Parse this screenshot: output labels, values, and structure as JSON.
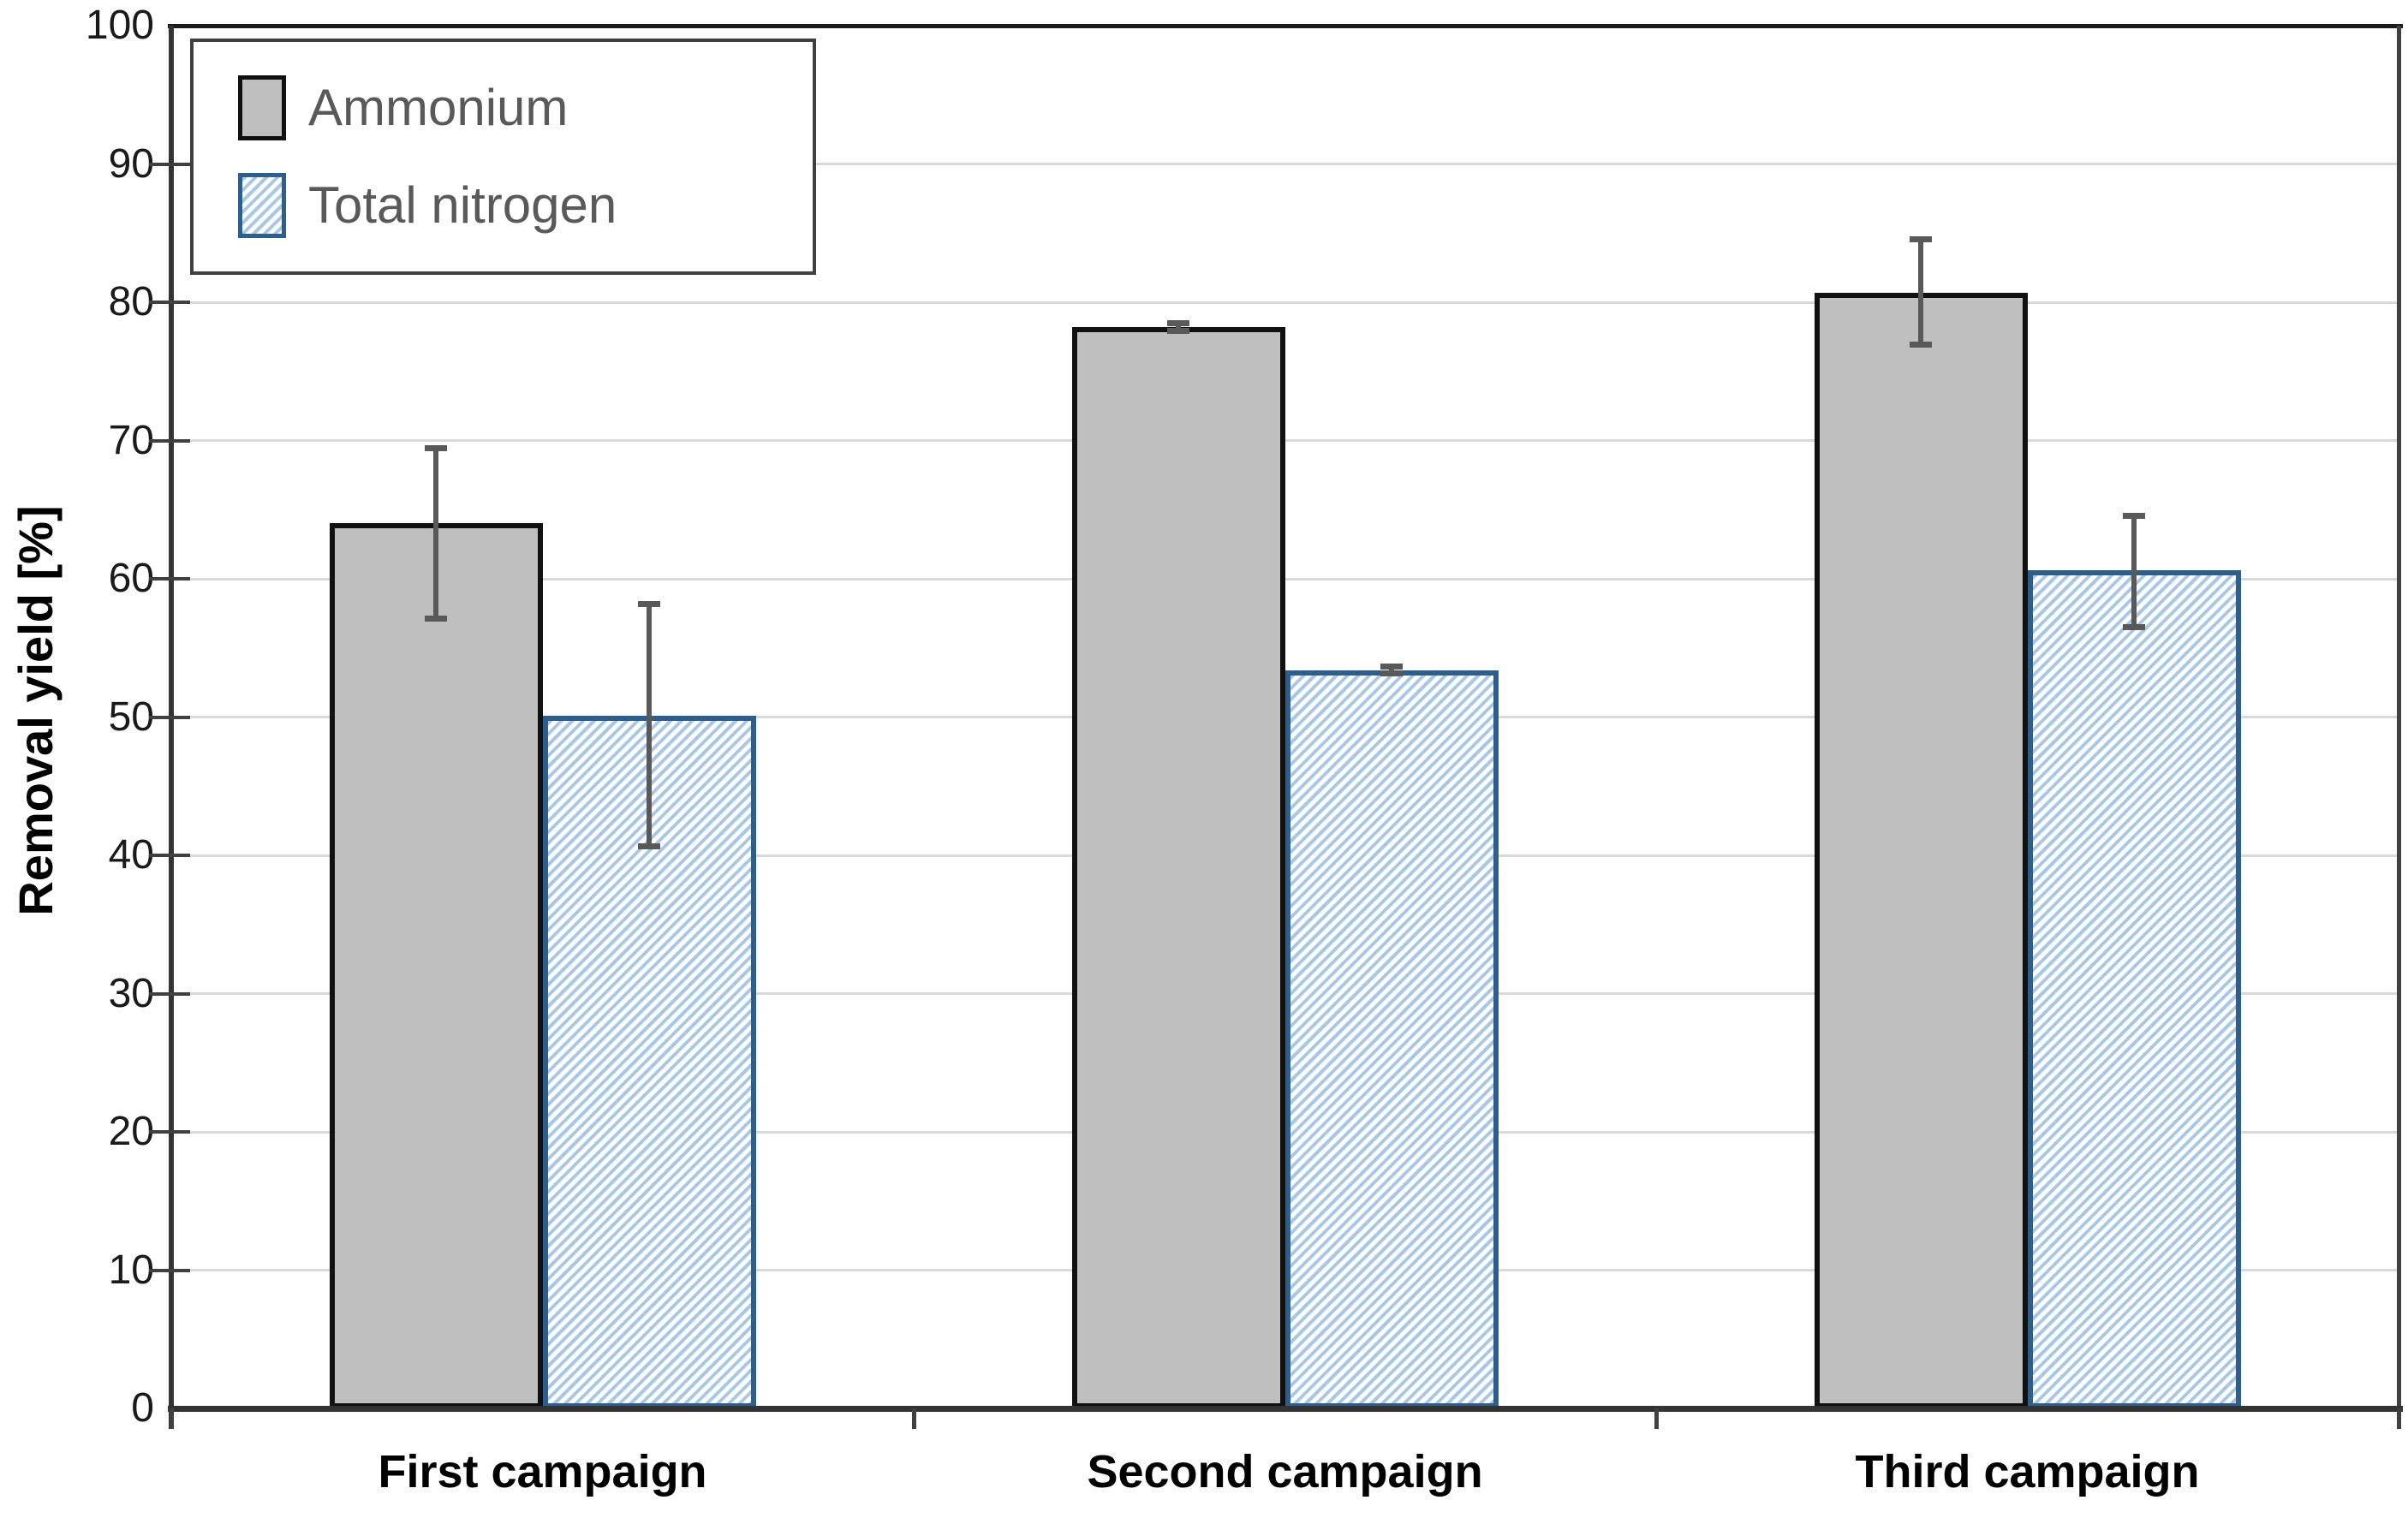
{
  "chart_data": {
    "type": "bar",
    "title": "",
    "ylabel": "Removal yield [%]",
    "xlabel": "",
    "ylim": [
      0,
      100
    ],
    "yticks": [
      0,
      10,
      20,
      30,
      40,
      50,
      60,
      70,
      80,
      90,
      100
    ],
    "grid": true,
    "legend_position": "top-left",
    "categories": [
      "First campaign",
      "Second campaign",
      "Third campaign"
    ],
    "series": [
      {
        "name": "Ammonium",
        "pattern": "solid",
        "fill": "#BFBFBF",
        "border": "#111111",
        "values": [
          64.0,
          78.2,
          80.7
        ],
        "error_low": [
          57.1,
          77.9,
          76.9
        ],
        "error_high": [
          69.5,
          78.5,
          84.6
        ]
      },
      {
        "name": "Total nitrogen",
        "pattern": "diagonal-hatch",
        "fill": "#FFFFFF",
        "stripe": "#A9C8E8",
        "border": "#2E5F8C",
        "values": [
          50.1,
          53.4,
          60.6
        ],
        "error_low": [
          40.6,
          53.1,
          56.5
        ],
        "error_high": [
          58.2,
          53.7,
          64.6
        ]
      }
    ],
    "error_bar_color": "#595959"
  },
  "colors": {
    "background": "#FFFFFF",
    "gridline": "#D9D9D9",
    "axis": "#333333",
    "frame_top": "#1A1A1A",
    "frame_right": "#404040",
    "tick": "#404040",
    "tick_label": "#1A1A1A",
    "category_label": "#000000",
    "legend_text": "#595959",
    "legend_border": "#404040"
  }
}
